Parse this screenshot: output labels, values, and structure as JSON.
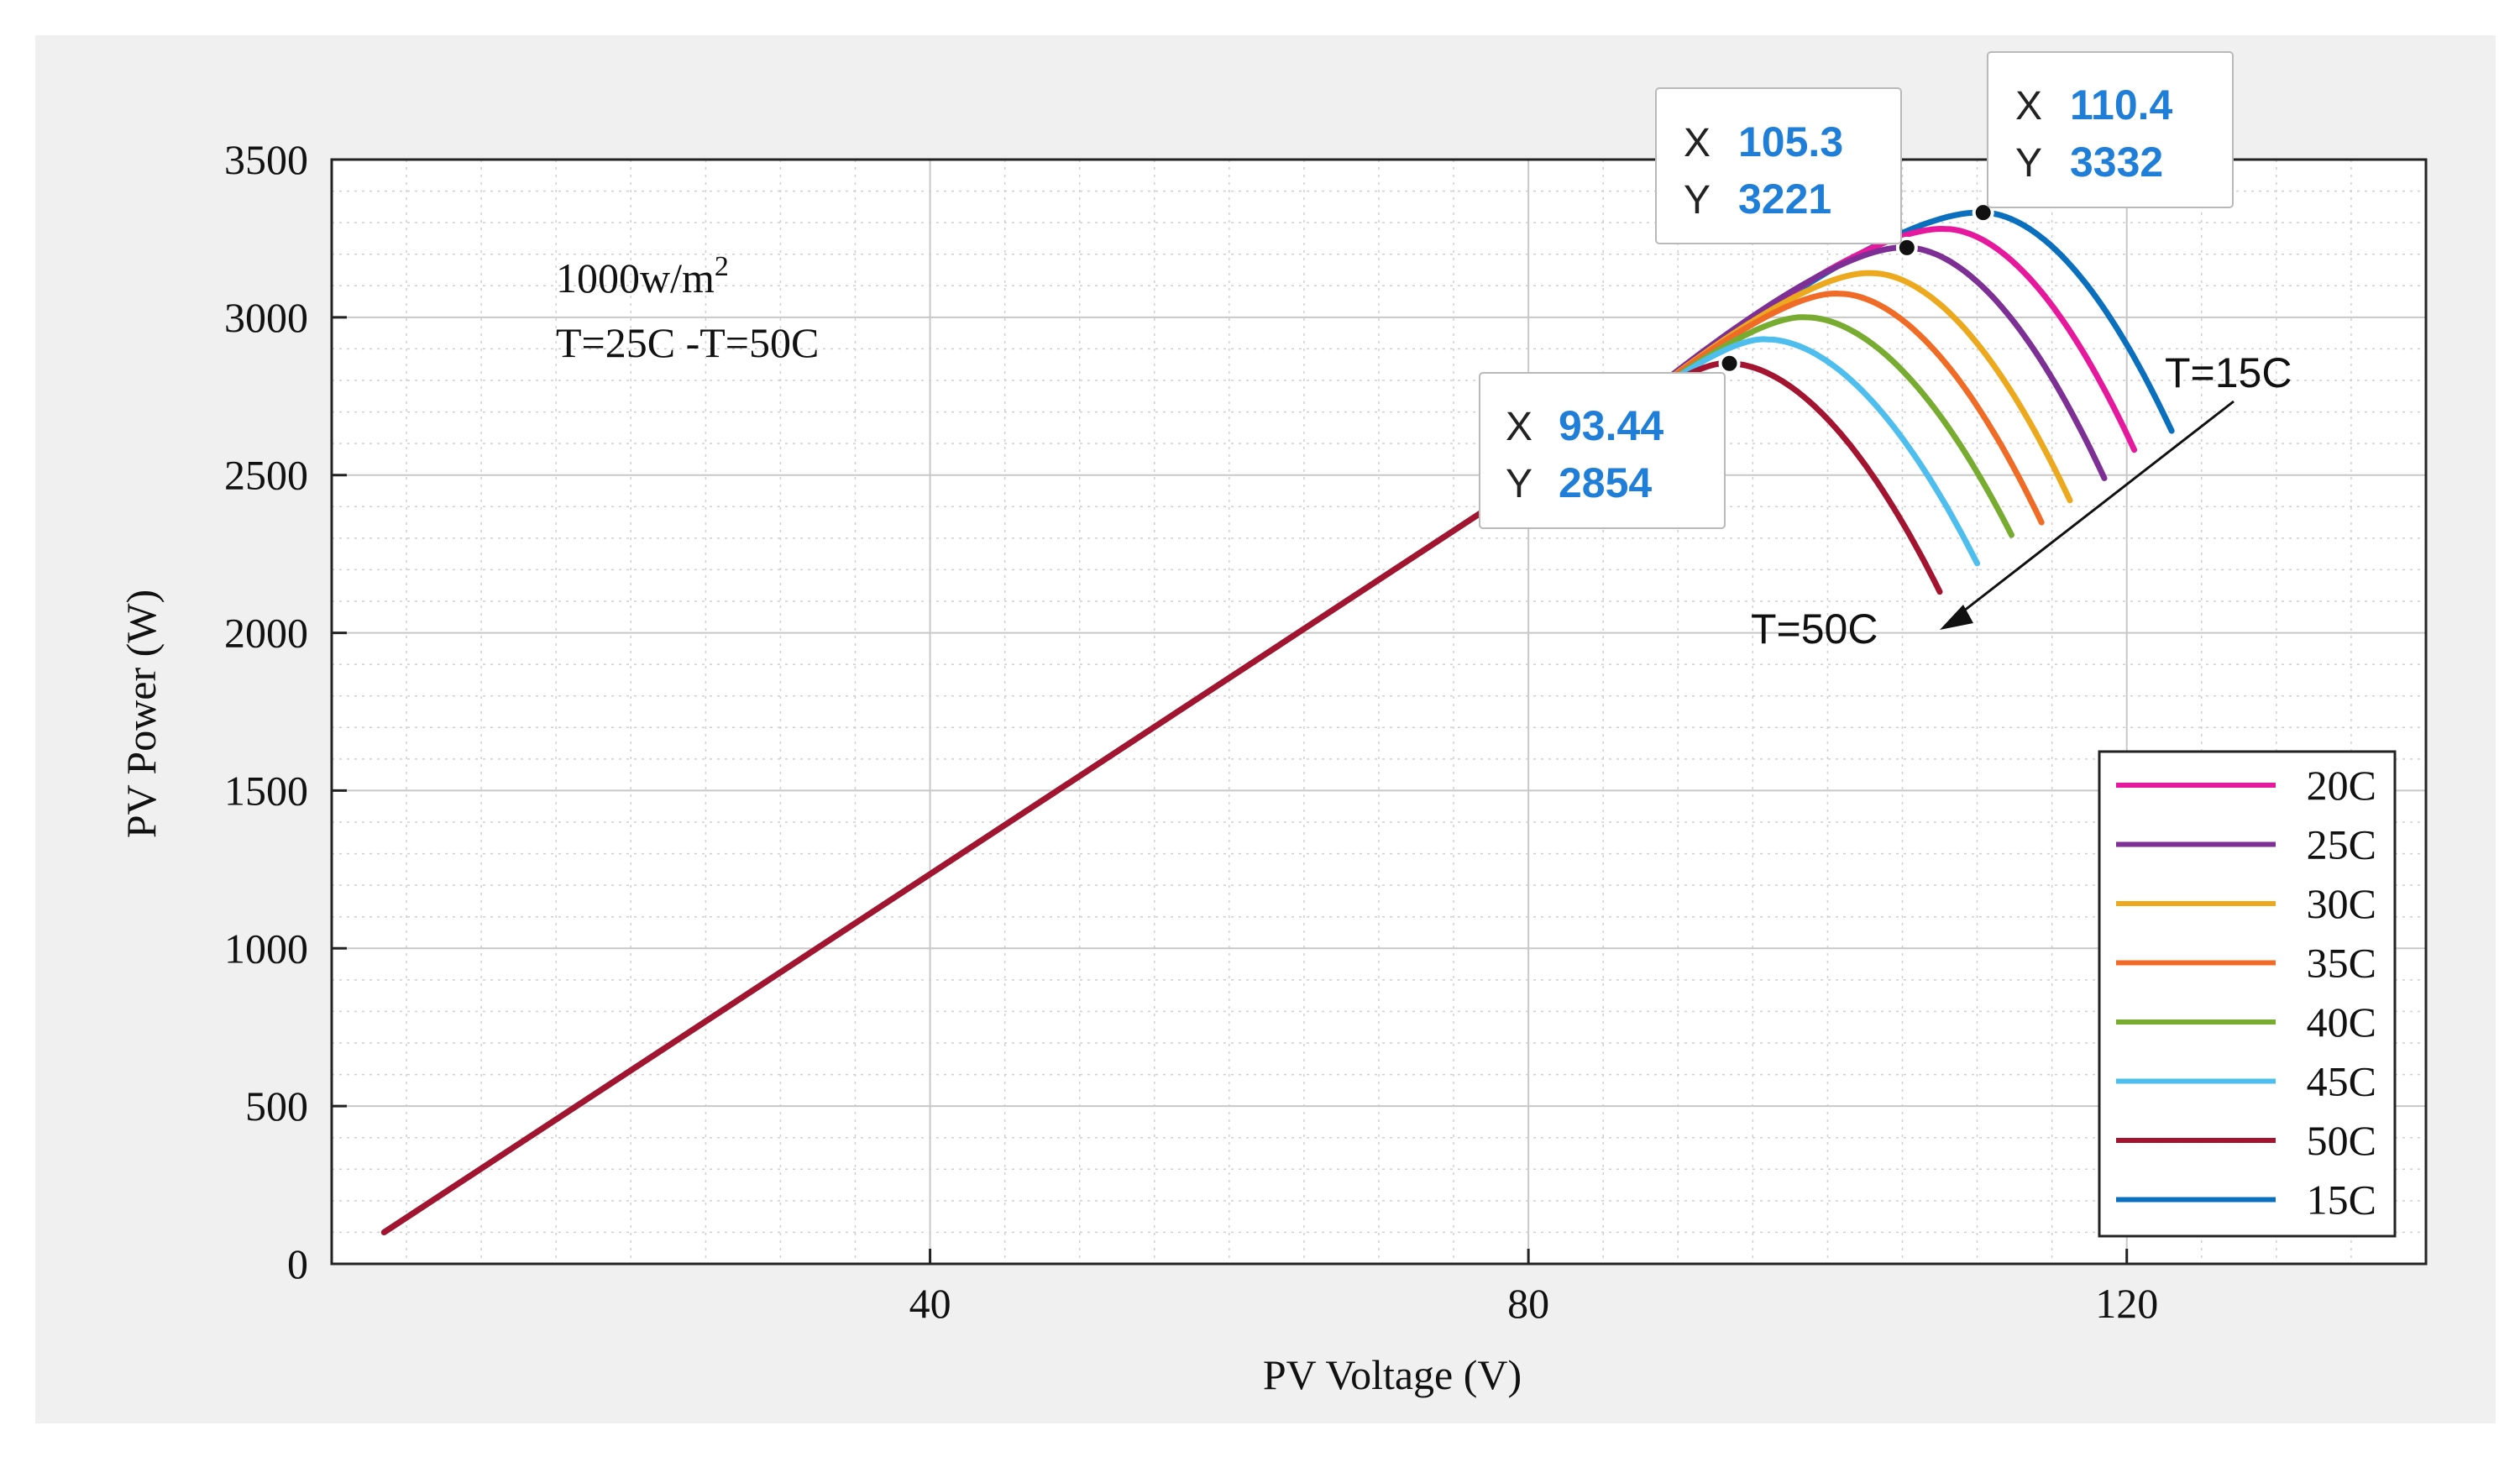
{
  "chart_data": {
    "type": "line",
    "xlabel": "PV Voltage (V)",
    "ylabel": "PV Power (W)",
    "xlim": [
      0,
      140
    ],
    "ylim": [
      0,
      3500
    ],
    "xticks": [
      40,
      80,
      120
    ],
    "xtick_labels": [
      "40",
      "80",
      "120"
    ],
    "yticks": [
      0,
      500,
      1000,
      1500,
      2000,
      2500,
      3000,
      3500
    ],
    "ytick_labels": [
      "0",
      "500",
      "1000",
      "1500",
      "2000",
      "2500",
      "3000",
      "3500"
    ],
    "grid": true,
    "annotations": {
      "irradiance_base": "1000w/m",
      "irradiance_sup": "2",
      "temp_range": "T=25C -T=50C",
      "arrow_start_label": "T=15C",
      "arrow_end_label": "T=50C"
    },
    "datatips": [
      {
        "x_label": "X",
        "x": "110.4",
        "y_label": "Y",
        "y": "3332",
        "xv": 110.4,
        "yv": 3332
      },
      {
        "x_label": "X",
        "x": "105.3",
        "y_label": "Y",
        "y": "3221",
        "xv": 105.3,
        "yv": 3221
      },
      {
        "x_label": "X",
        "x": "93.44",
        "y_label": "Y",
        "y": "2854",
        "xv": 93.44,
        "yv": 2854
      }
    ],
    "series": [
      {
        "name": "20C",
        "color": "#e6199e",
        "vmp": 107.9,
        "pmp": 3280,
        "voc_end": 120.5,
        "p_end": 2580
      },
      {
        "name": "25C",
        "color": "#7d2f95",
        "vmp": 105.3,
        "pmp": 3221,
        "voc_end": 118.5,
        "p_end": 2490
      },
      {
        "name": "30C",
        "color": "#eda91e",
        "vmp": 103.0,
        "pmp": 3140,
        "voc_end": 116.2,
        "p_end": 2420
      },
      {
        "name": "35C",
        "color": "#ef6b26",
        "vmp": 100.8,
        "pmp": 3075,
        "voc_end": 114.3,
        "p_end": 2350
      },
      {
        "name": "40C",
        "color": "#77ac30",
        "vmp": 98.6,
        "pmp": 3000,
        "voc_end": 112.3,
        "p_end": 2310
      },
      {
        "name": "45C",
        "color": "#4dbeee",
        "vmp": 96.0,
        "pmp": 2930,
        "voc_end": 110.0,
        "p_end": 2220
      },
      {
        "name": "50C",
        "color": "#a2142f",
        "vmp": 93.44,
        "pmp": 2854,
        "voc_end": 107.5,
        "p_end": 2130
      },
      {
        "name": "15C",
        "color": "#0a6fbd",
        "vmp": 110.4,
        "pmp": 3332,
        "voc_end": 123.0,
        "p_end": 2640
      }
    ],
    "linear_start": [
      3.5,
      100
    ],
    "linear_slope": 31.1
  }
}
